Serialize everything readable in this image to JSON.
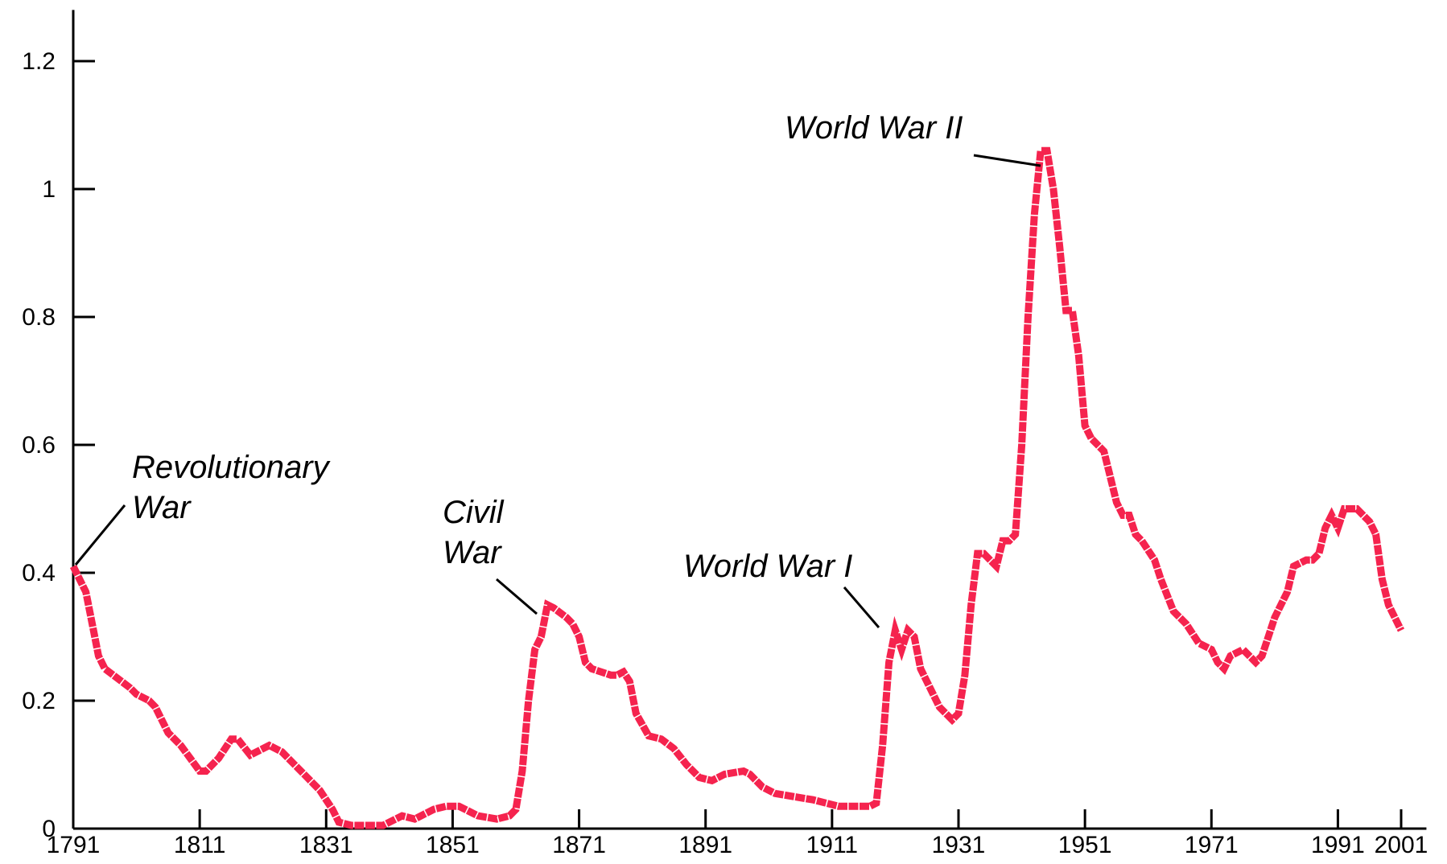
{
  "chart_data": {
    "type": "line",
    "x": [
      1791,
      1793,
      1794,
      1795,
      1796,
      1800,
      1801,
      1803,
      1804,
      1806,
      1808,
      1811,
      1812,
      1814,
      1816,
      1817,
      1819,
      1822,
      1824,
      1826,
      1828,
      1830,
      1832,
      1833,
      1835,
      1840,
      1843,
      1845,
      1848,
      1850,
      1852,
      1855,
      1858,
      1860,
      1861,
      1862,
      1863,
      1864,
      1865,
      1866,
      1867,
      1869,
      1870,
      1871,
      1872,
      1873,
      1876,
      1877,
      1878,
      1879,
      1880,
      1882,
      1884,
      1886,
      1888,
      1890,
      1892,
      1894,
      1897,
      1898,
      1900,
      1902,
      1905,
      1908,
      1910,
      1912,
      1915,
      1917,
      1918,
      1919,
      1920,
      1921,
      1922,
      1923,
      1924,
      1925,
      1926,
      1928,
      1930,
      1931,
      1932,
      1933,
      1934,
      1935,
      1936,
      1937,
      1938,
      1939,
      1940,
      1941,
      1942,
      1943,
      1944,
      1945,
      1946,
      1947,
      1948,
      1949,
      1950,
      1951,
      1952,
      1953,
      1954,
      1955,
      1956,
      1957,
      1958,
      1959,
      1960,
      1962,
      1963,
      1965,
      1967,
      1969,
      1971,
      1972,
      1973,
      1974,
      1976,
      1978,
      1979,
      1980,
      1981,
      1982,
      1983,
      1984,
      1986,
      1987,
      1988,
      1989,
      1990,
      1991,
      1992,
      1994,
      1996,
      1997,
      1998,
      1999,
      2001
    ],
    "series": [
      {
        "color": "#f5234e",
        "values": [
          0.41,
          0.37,
          0.32,
          0.27,
          0.25,
          0.22,
          0.21,
          0.2,
          0.19,
          0.15,
          0.13,
          0.09,
          0.09,
          0.11,
          0.14,
          0.14,
          0.115,
          0.13,
          0.12,
          0.1,
          0.08,
          0.06,
          0.03,
          0.01,
          0.005,
          0.005,
          0.02,
          0.015,
          0.03,
          0.035,
          0.035,
          0.02,
          0.015,
          0.02,
          0.03,
          0.09,
          0.2,
          0.28,
          0.3,
          0.35,
          0.345,
          0.33,
          0.32,
          0.3,
          0.26,
          0.25,
          0.24,
          0.24,
          0.245,
          0.23,
          0.18,
          0.145,
          0.14,
          0.125,
          0.1,
          0.08,
          0.075,
          0.085,
          0.09,
          0.085,
          0.065,
          0.055,
          0.05,
          0.045,
          0.04,
          0.035,
          0.035,
          0.035,
          0.04,
          0.13,
          0.26,
          0.31,
          0.28,
          0.31,
          0.3,
          0.25,
          0.23,
          0.19,
          0.17,
          0.18,
          0.24,
          0.35,
          0.43,
          0.43,
          0.42,
          0.41,
          0.45,
          0.45,
          0.46,
          0.6,
          0.8,
          0.96,
          1.06,
          1.06,
          1.0,
          0.91,
          0.81,
          0.81,
          0.74,
          0.63,
          0.61,
          0.6,
          0.59,
          0.55,
          0.51,
          0.49,
          0.49,
          0.46,
          0.45,
          0.42,
          0.39,
          0.34,
          0.32,
          0.29,
          0.28,
          0.26,
          0.25,
          0.27,
          0.28,
          0.26,
          0.27,
          0.3,
          0.33,
          0.35,
          0.37,
          0.41,
          0.42,
          0.42,
          0.43,
          0.47,
          0.49,
          0.47,
          0.5,
          0.5,
          0.48,
          0.46,
          0.39,
          0.35,
          0.31
        ]
      }
    ],
    "xlim": [
      1791,
      2005
    ],
    "ylim": [
      0,
      1.28
    ],
    "xticks": [
      1791,
      1811,
      1831,
      1851,
      1871,
      1891,
      1911,
      1931,
      1951,
      1971,
      1991,
      2001
    ],
    "yticks": [
      0,
      0.2,
      0.4,
      0.6,
      0.8,
      1,
      1.2
    ],
    "annotations": [
      {
        "lines": [
          "Revolutionary",
          "War"
        ]
      },
      {
        "lines": [
          "Civil",
          "War"
        ]
      },
      {
        "lines": [
          "World War I"
        ]
      },
      {
        "lines": [
          "World War II"
        ]
      }
    ]
  }
}
